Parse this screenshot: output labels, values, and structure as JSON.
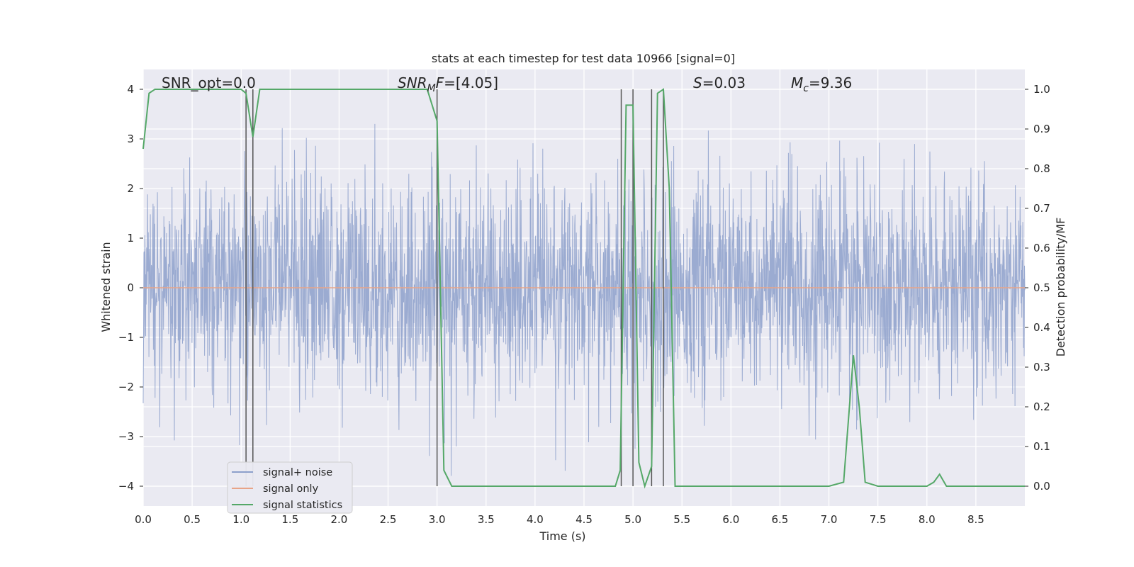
{
  "chart_data": {
    "type": "line",
    "title": "stats at each timestep for test data 10966 [signal=0]",
    "xlabel": "Time (s)",
    "ylabel": "Whitened strain",
    "ylabel_right": "Detection probability/MF",
    "xlim": [
      0.0,
      9.0
    ],
    "ylim": [
      -4.4,
      4.4
    ],
    "ylim_right": [
      -0.05,
      1.05
    ],
    "x_ticks": [
      "0.0",
      "0.5",
      "1.0",
      "1.5",
      "2.0",
      "2.5",
      "3.0",
      "3.5",
      "4.0",
      "4.5",
      "5.0",
      "5.5",
      "6.0",
      "6.5",
      "7.0",
      "7.5",
      "8.0",
      "8.5"
    ],
    "y_ticks": [
      "4",
      "3",
      "2",
      "1",
      "0",
      "−1",
      "−2",
      "−3",
      "−4"
    ],
    "y_ticks_right": [
      "1.0",
      "0.9",
      "0.8",
      "0.7",
      "0.6",
      "0.5",
      "0.4",
      "0.3",
      "0.2",
      "0.1",
      "0.0"
    ],
    "grid": true,
    "legend_position": "lower-left",
    "annotations": [
      {
        "label": "SNR_opt=0.0"
      },
      {
        "label": "SNR_MF=[4.05]"
      },
      {
        "label": "S=0.03"
      },
      {
        "label": "M_c=9.36"
      }
    ],
    "vertical_markers": [
      1.05,
      1.12,
      3.0,
      4.88,
      5.0,
      5.19,
      5.31
    ],
    "series": [
      {
        "name": "signal+ noise",
        "color": "#8da0cb",
        "axis": "left",
        "description_values": "whitened noise, approx gaussian, std ~1, peaks between -4 and 4"
      },
      {
        "name": "signal only",
        "color": "#e8a488",
        "axis": "left",
        "y_constant": 0.0
      },
      {
        "name": "signal statistics",
        "color": "#55a868",
        "axis": "right",
        "x": [
          0.0,
          0.06,
          0.12,
          0.2,
          0.5,
          1.0,
          1.05,
          1.12,
          1.19,
          1.25,
          1.5,
          1.75,
          2.0,
          2.1,
          2.2,
          2.5,
          2.9,
          3.0,
          3.07,
          3.15,
          3.5,
          4.0,
          4.5,
          4.82,
          4.87,
          4.93,
          5.0,
          5.06,
          5.12,
          5.19,
          5.25,
          5.31,
          5.37,
          5.43,
          5.5,
          6.0,
          6.5,
          7.0,
          7.15,
          7.25,
          7.31,
          7.37,
          7.5,
          8.0,
          8.07,
          8.13,
          8.2,
          8.5,
          9.0
        ],
        "y": [
          0.85,
          0.99,
          1.0,
          1.0,
          1.0,
          1.0,
          0.99,
          0.88,
          1.0,
          1.0,
          1.0,
          1.0,
          1.0,
          1.0,
          1.0,
          1.0,
          1.0,
          0.92,
          0.04,
          0.0,
          0.0,
          0.0,
          0.0,
          0.0,
          0.04,
          0.96,
          0.96,
          0.06,
          0.0,
          0.05,
          0.99,
          1.0,
          0.75,
          0.0,
          0.0,
          0.0,
          0.0,
          0.0,
          0.01,
          0.33,
          0.2,
          0.01,
          0.0,
          0.0,
          0.01,
          0.03,
          0.0,
          0.0,
          0.0
        ]
      }
    ]
  }
}
